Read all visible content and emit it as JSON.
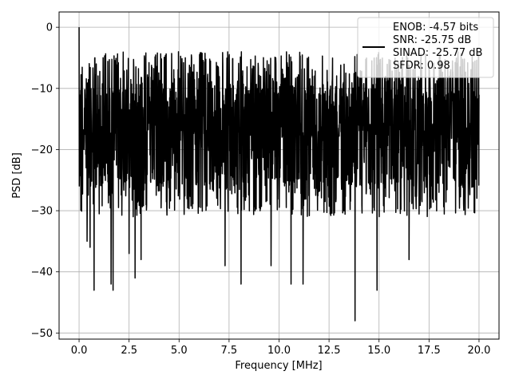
{
  "chart_data": {
    "type": "line",
    "title": "",
    "xlabel": "Frequency [MHz]",
    "ylabel": "PSD [dB]",
    "xlim": [
      -1.0,
      21.0
    ],
    "ylim": [
      -51,
      2.5
    ],
    "xticks": [
      0.0,
      2.5,
      5.0,
      7.5,
      10.0,
      12.5,
      15.0,
      17.5,
      20.0
    ],
    "xtick_labels": [
      "0.0",
      "2.5",
      "5.0",
      "7.5",
      "10.0",
      "12.5",
      "15.0",
      "17.5",
      "20.0"
    ],
    "yticks": [
      0,
      -10,
      -20,
      -30,
      -40,
      -50
    ],
    "ytick_labels": [
      "0",
      "−10",
      "−20",
      "−30",
      "−40",
      "−50"
    ],
    "grid": true,
    "legend_position": "top-right",
    "series": [
      {
        "name": "ENOB: -4.57 bits\nSNR: -25.75 dB\nSINAD: -25.77 dB\nSFDR: 0.98",
        "color": "#000000",
        "x_range": [
          0.0,
          20.0
        ],
        "points": 2048,
        "envelope": {
          "peak_at_0": 0,
          "typical_top": [
            -8,
            -4
          ],
          "typical_bottom": [
            -30,
            -20
          ]
        },
        "notable_dips": [
          {
            "x": 0.4,
            "y": -35
          },
          {
            "x": 0.55,
            "y": -36
          },
          {
            "x": 0.75,
            "y": -43
          },
          {
            "x": 1.6,
            "y": -42
          },
          {
            "x": 1.7,
            "y": -43
          },
          {
            "x": 2.5,
            "y": -37
          },
          {
            "x": 2.8,
            "y": -41
          },
          {
            "x": 3.1,
            "y": -38
          },
          {
            "x": 7.3,
            "y": -39
          },
          {
            "x": 8.1,
            "y": -42
          },
          {
            "x": 9.6,
            "y": -39
          },
          {
            "x": 10.6,
            "y": -42
          },
          {
            "x": 11.2,
            "y": -42
          },
          {
            "x": 13.8,
            "y": -48
          },
          {
            "x": 14.9,
            "y": -43
          },
          {
            "x": 16.5,
            "y": -38
          }
        ]
      }
    ],
    "legend_lines": [
      "ENOB: -4.57 bits",
      "SNR: -25.75 dB",
      "SINAD: -25.77 dB",
      "SFDR: 0.98"
    ]
  }
}
